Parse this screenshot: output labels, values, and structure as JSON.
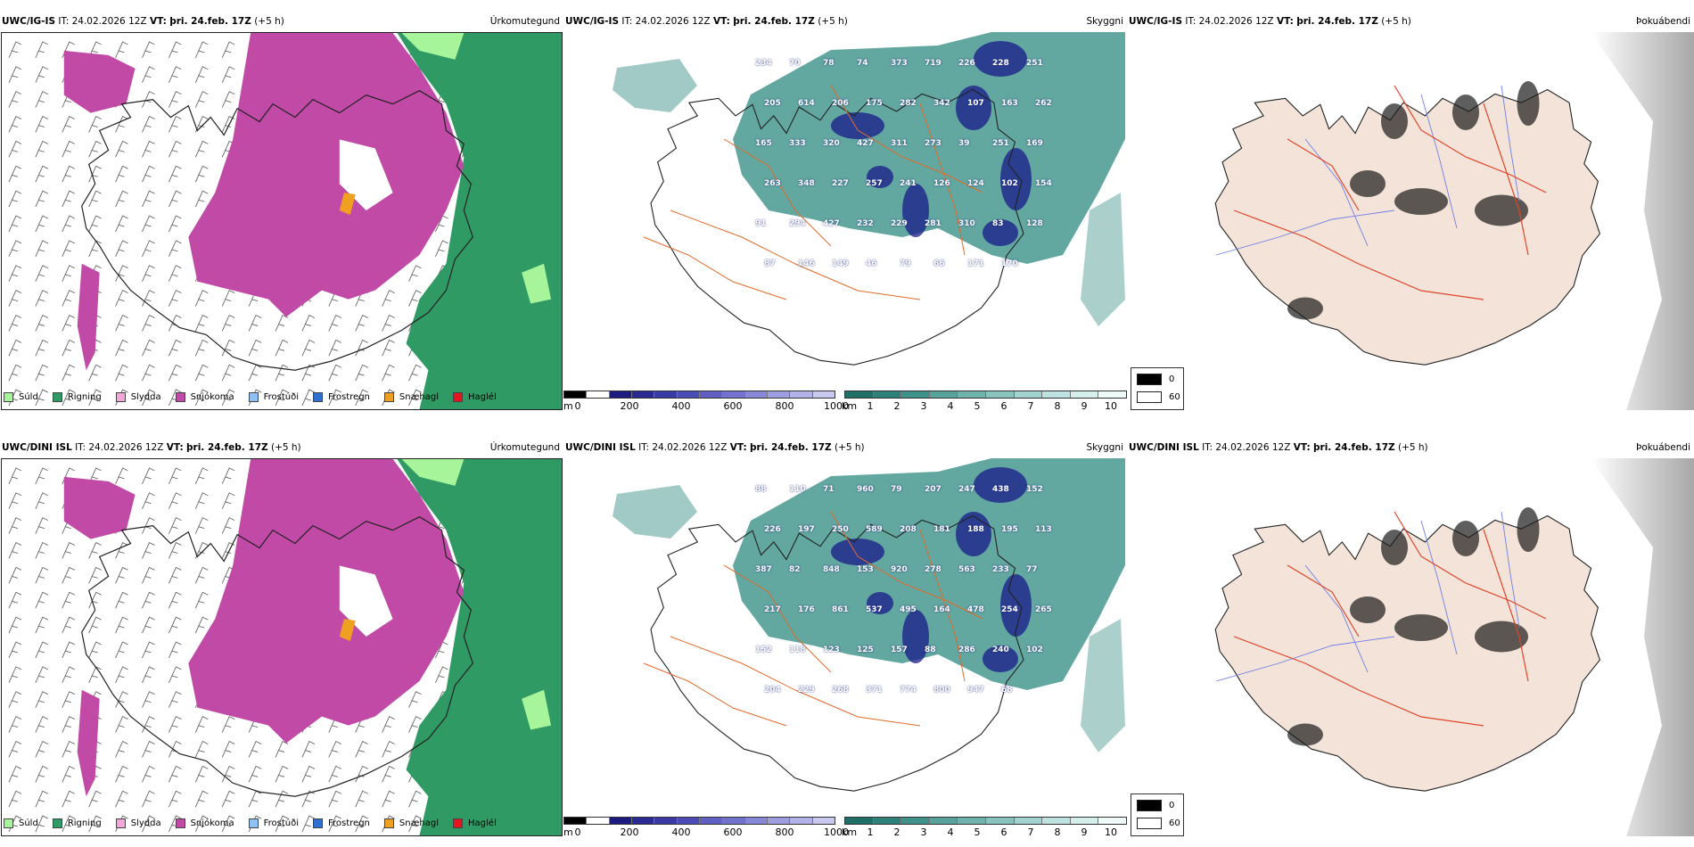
{
  "colors": {
    "sulid": "#a6f59a",
    "rigning": "#2f9a64",
    "slydda": "#f2a7d8",
    "snjokoma": "#c04aa6",
    "frostudi": "#8fc1f5",
    "frostregn": "#2f6fd1",
    "snaehagl": "#f0a020",
    "hagl": "#e8141e",
    "land_bg": "#f3e3d8",
    "roads": "#e36a2a",
    "rivers": "#6e7fe8",
    "vis_dark": "#1a1a8a",
    "vis_teal": "#2e8a80"
  },
  "rows": [
    {
      "model": "UWC/IG-IS",
      "it_label": "IT:",
      "it_value": "24.02.2026 12Z",
      "vt_label": "VT:",
      "vt_value": "þri. 24.feb. 17Z",
      "lead": "(+5 h)"
    },
    {
      "model": "UWC/DINI ISL",
      "it_label": "IT:",
      "it_value": "24.02.2026 12Z",
      "vt_label": "VT:",
      "vt_value": "þri. 24.feb. 17Z",
      "lead": "(+5 h)"
    }
  ],
  "panel_titles": {
    "precip_type": "Úrkomutegund",
    "visibility": "Skyggni",
    "fog": "Þokuábendi"
  },
  "precip_legend": [
    "Súld",
    "Rigning",
    "Slydda",
    "Snjókoma",
    "Frostúði",
    "Frostregn",
    "Snæhagl",
    "Haglél"
  ],
  "cloud_scale": {
    "unit": "m",
    "ticks": [
      "0",
      "200",
      "400",
      "600",
      "800",
      "1000"
    ]
  },
  "vis_scale": {
    "unit": "km",
    "ticks": [
      "1",
      "2",
      "3",
      "4",
      "5",
      "6",
      "7",
      "8",
      "9",
      "10"
    ]
  },
  "fog_legend": [
    "0",
    "60"
  ],
  "vis_labels": [
    [
      "234",
      "70",
      "78",
      "74",
      "373",
      "719",
      "226",
      "228",
      "251",
      "205",
      "614",
      "206",
      "175",
      "282",
      "342",
      "107",
      "163",
      "262",
      "165",
      "333",
      "320",
      "427",
      "311",
      "273",
      "39",
      "251",
      "169",
      "263",
      "348",
      "227",
      "257",
      "241",
      "126",
      "124",
      "102",
      "154",
      "91",
      "294",
      "427",
      "232",
      "229",
      "281",
      "310",
      "83",
      "128",
      "87",
      "146",
      "149",
      "46",
      "79",
      "66",
      "171",
      "170"
    ],
    [
      "88",
      "110",
      "71",
      "960",
      "79",
      "207",
      "247",
      "438",
      "152",
      "226",
      "197",
      "250",
      "589",
      "208",
      "181",
      "188",
      "195",
      "113",
      "387",
      "82",
      "848",
      "153",
      "920",
      "278",
      "563",
      "233",
      "77",
      "217",
      "176",
      "861",
      "537",
      "495",
      "164",
      "478",
      "254",
      "265",
      "152",
      "118",
      "123",
      "125",
      "157",
      "88",
      "286",
      "240",
      "102",
      "204",
      "229",
      "268",
      "371",
      "774",
      "800",
      "947",
      "68"
    ]
  ]
}
